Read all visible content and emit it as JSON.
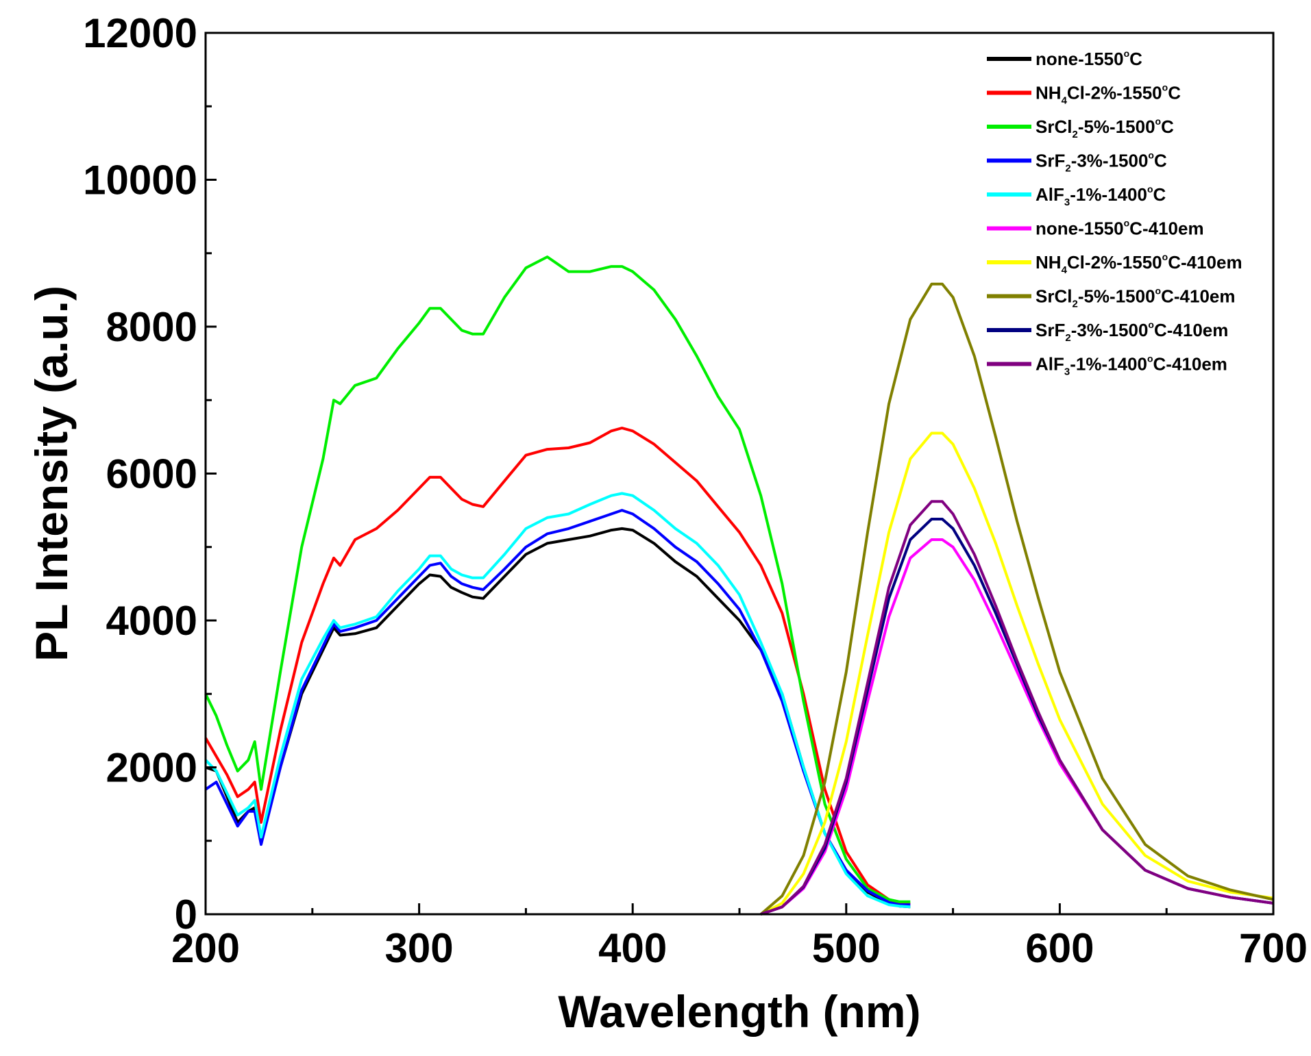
{
  "chart_data": {
    "type": "line",
    "title": "",
    "xlabel": "Wavelength (nm)",
    "ylabel": "PL Intensity (a.u.)",
    "xlim": [
      200,
      700
    ],
    "ylim": [
      0,
      12000
    ],
    "x_ticks": [
      "200",
      "300",
      "400",
      "500",
      "600",
      "700"
    ],
    "y_ticks": [
      "0",
      "2000",
      "4000",
      "6000",
      "8000",
      "10000",
      "12000"
    ],
    "grid": false,
    "legend_position": "top-right",
    "series": [
      {
        "name": "none-1550°C",
        "label_main": "none-1550",
        "label_sup": "o",
        "label_tail": "C",
        "color": "#000000",
        "x": [
          200,
          205,
          210,
          215,
          220,
          223,
          226,
          235,
          245,
          255,
          260,
          263,
          270,
          280,
          290,
          300,
          305,
          310,
          315,
          320,
          325,
          330,
          340,
          350,
          360,
          370,
          380,
          390,
          395,
          400,
          410,
          420,
          430,
          440,
          450,
          460,
          470,
          480,
          490,
          500,
          510,
          520,
          525,
          530
        ],
        "y": [
          2000,
          1950,
          1600,
          1250,
          1400,
          1450,
          1000,
          2000,
          3000,
          3600,
          3900,
          3800,
          3820,
          3900,
          4200,
          4500,
          4620,
          4600,
          4450,
          4380,
          4320,
          4300,
          4600,
          4900,
          5050,
          5100,
          5150,
          5230,
          5250,
          5230,
          5050,
          4800,
          4600,
          4300,
          4000,
          3600,
          3000,
          2000,
          1100,
          600,
          300,
          150,
          110,
          100
        ]
      },
      {
        "name": "NH4Cl-2%-1550°C",
        "label_main": "NH",
        "label_sub": "4",
        "label_mid": "Cl-2%-1550",
        "label_sup": "o",
        "label_tail": "C",
        "color": "#ff0000",
        "x": [
          200,
          205,
          210,
          215,
          220,
          223,
          226,
          235,
          245,
          255,
          260,
          263,
          270,
          280,
          290,
          300,
          305,
          310,
          315,
          320,
          325,
          330,
          340,
          350,
          360,
          370,
          380,
          390,
          395,
          400,
          410,
          420,
          430,
          440,
          450,
          460,
          470,
          480,
          490,
          500,
          510,
          520,
          525,
          530
        ],
        "y": [
          2400,
          2150,
          1900,
          1600,
          1700,
          1800,
          1250,
          2500,
          3700,
          4500,
          4850,
          4750,
          5100,
          5250,
          5500,
          5800,
          5950,
          5950,
          5800,
          5650,
          5580,
          5550,
          5900,
          6250,
          6330,
          6350,
          6420,
          6580,
          6620,
          6580,
          6400,
          6150,
          5900,
          5550,
          5200,
          4750,
          4100,
          3000,
          1700,
          850,
          400,
          200,
          150,
          140
        ]
      },
      {
        "name": "SrCl2-5%-1500°C",
        "label_main": "SrCl",
        "label_sub": "2",
        "label_mid": "-5%-1500",
        "label_sup": "o",
        "label_tail": "C",
        "color": "#00ee00",
        "x": [
          200,
          205,
          210,
          215,
          220,
          223,
          226,
          235,
          245,
          255,
          260,
          263,
          270,
          280,
          290,
          300,
          305,
          310,
          315,
          320,
          325,
          330,
          340,
          350,
          360,
          370,
          380,
          390,
          395,
          400,
          410,
          420,
          430,
          440,
          450,
          460,
          470,
          480,
          490,
          500,
          510,
          520,
          525,
          530
        ],
        "y": [
          3000,
          2700,
          2300,
          1950,
          2100,
          2350,
          1700,
          3300,
          5000,
          6200,
          7000,
          6950,
          7200,
          7300,
          7700,
          8050,
          8250,
          8250,
          8100,
          7950,
          7900,
          7900,
          8400,
          8800,
          8950,
          8750,
          8750,
          8820,
          8820,
          8750,
          8500,
          8100,
          7600,
          7050,
          6600,
          5700,
          4500,
          2900,
          1500,
          750,
          350,
          200,
          170,
          170
        ]
      },
      {
        "name": "SrF2-3%-1500°C",
        "label_main": "SrF",
        "label_sub": "2",
        "label_mid": "-3%-1500",
        "label_sup": "o",
        "label_tail": "C",
        "color": "#0000ff",
        "x": [
          200,
          205,
          210,
          215,
          220,
          223,
          226,
          235,
          245,
          255,
          260,
          263,
          270,
          280,
          290,
          300,
          305,
          310,
          315,
          320,
          325,
          330,
          340,
          350,
          360,
          370,
          380,
          390,
          395,
          400,
          410,
          420,
          430,
          440,
          450,
          460,
          470,
          480,
          490,
          500,
          510,
          520,
          525,
          530
        ],
        "y": [
          1700,
          1800,
          1500,
          1200,
          1400,
          1400,
          950,
          2000,
          3050,
          3650,
          3950,
          3850,
          3900,
          4000,
          4300,
          4600,
          4750,
          4780,
          4600,
          4500,
          4450,
          4420,
          4700,
          5000,
          5180,
          5250,
          5350,
          5450,
          5500,
          5450,
          5250,
          5000,
          4800,
          4500,
          4150,
          3600,
          2900,
          1950,
          1100,
          600,
          320,
          160,
          130,
          130
        ]
      },
      {
        "name": "AlF3-1%-1400°C",
        "label_main": "AlF",
        "label_sub": "3",
        "label_mid": "-1%-1400",
        "label_sup": "o",
        "label_tail": "C",
        "color": "#00ffff",
        "x": [
          200,
          205,
          210,
          215,
          220,
          223,
          226,
          235,
          245,
          255,
          260,
          263,
          270,
          280,
          290,
          300,
          305,
          310,
          315,
          320,
          325,
          330,
          340,
          350,
          360,
          370,
          380,
          390,
          395,
          400,
          410,
          420,
          430,
          440,
          450,
          460,
          470,
          480,
          490,
          500,
          510,
          520,
          525,
          530
        ],
        "y": [
          2100,
          1950,
          1650,
          1350,
          1450,
          1550,
          1050,
          2150,
          3200,
          3750,
          4000,
          3900,
          3950,
          4050,
          4400,
          4700,
          4880,
          4880,
          4700,
          4620,
          4580,
          4580,
          4900,
          5250,
          5400,
          5450,
          5580,
          5700,
          5730,
          5700,
          5500,
          5250,
          5050,
          4750,
          4350,
          3700,
          3000,
          2000,
          1100,
          550,
          250,
          130,
          110,
          100
        ]
      },
      {
        "name": "none-1550°C-410em",
        "label_main": "none-1550",
        "label_sup": "o",
        "label_tail": "C-410em",
        "color": "#ff00ff",
        "x": [
          460,
          470,
          480,
          490,
          500,
          510,
          520,
          530,
          540,
          545,
          550,
          560,
          570,
          580,
          590,
          600,
          620,
          640,
          660,
          680,
          700
        ],
        "y": [
          0,
          100,
          350,
          850,
          1700,
          2900,
          4050,
          4850,
          5100,
          5100,
          5000,
          4550,
          3950,
          3300,
          2650,
          2050,
          1150,
          600,
          350,
          230,
          150
        ]
      },
      {
        "name": "NH4Cl-2%-1550°C-410em",
        "label_main": "NH",
        "label_sub": "4",
        "label_mid": "Cl-2%-1550",
        "label_sup": "o",
        "label_tail": "C-410em",
        "color": "#ffff00",
        "x": [
          460,
          470,
          480,
          490,
          500,
          510,
          520,
          530,
          540,
          545,
          550,
          560,
          570,
          580,
          590,
          600,
          620,
          640,
          660,
          680,
          700
        ],
        "y": [
          0,
          150,
          550,
          1250,
          2350,
          3800,
          5200,
          6200,
          6550,
          6550,
          6400,
          5800,
          5050,
          4200,
          3400,
          2650,
          1500,
          800,
          450,
          300,
          220
        ]
      },
      {
        "name": "SrCl2-5%-1500°C-410em",
        "label_main": "SrCl",
        "label_sub": "2",
        "label_mid": "-5%-1500",
        "label_sup": "o",
        "label_tail": "C-410em",
        "color": "#808000",
        "x": [
          460,
          470,
          480,
          490,
          500,
          510,
          520,
          530,
          540,
          545,
          550,
          560,
          570,
          580,
          590,
          600,
          620,
          640,
          660,
          680,
          700
        ],
        "y": [
          0,
          250,
          800,
          1800,
          3300,
          5200,
          6950,
          8100,
          8580,
          8580,
          8400,
          7600,
          6500,
          5350,
          4300,
          3300,
          1850,
          950,
          520,
          330,
          200
        ]
      },
      {
        "name": "SrF2-3%-1500°C-410em",
        "label_main": "SrF",
        "label_sub": "2",
        "label_mid": "-3%-1500",
        "label_sup": "o",
        "label_tail": "C-410em",
        "color": "#000080",
        "x": [
          460,
          470,
          480,
          490,
          500,
          510,
          520,
          530,
          540,
          545,
          550,
          560,
          570,
          580,
          590,
          600,
          620,
          640,
          660,
          680,
          700
        ],
        "y": [
          0,
          100,
          370,
          900,
          1800,
          3050,
          4300,
          5100,
          5380,
          5380,
          5250,
          4750,
          4100,
          3400,
          2700,
          2100,
          1150,
          600,
          350,
          230,
          150
        ]
      },
      {
        "name": "AlF3-1%-1400°C-410em",
        "label_main": "AlF",
        "label_sub": "3",
        "label_mid": "-1%-1400",
        "label_sup": "o",
        "label_tail": "C-410em",
        "color": "#800080",
        "x": [
          460,
          470,
          480,
          490,
          500,
          510,
          520,
          530,
          540,
          545,
          550,
          560,
          570,
          580,
          590,
          600,
          620,
          640,
          660,
          680,
          700
        ],
        "y": [
          0,
          100,
          380,
          950,
          1850,
          3150,
          4450,
          5300,
          5620,
          5620,
          5450,
          4900,
          4200,
          3450,
          2750,
          2100,
          1150,
          600,
          350,
          230,
          150
        ]
      }
    ]
  }
}
